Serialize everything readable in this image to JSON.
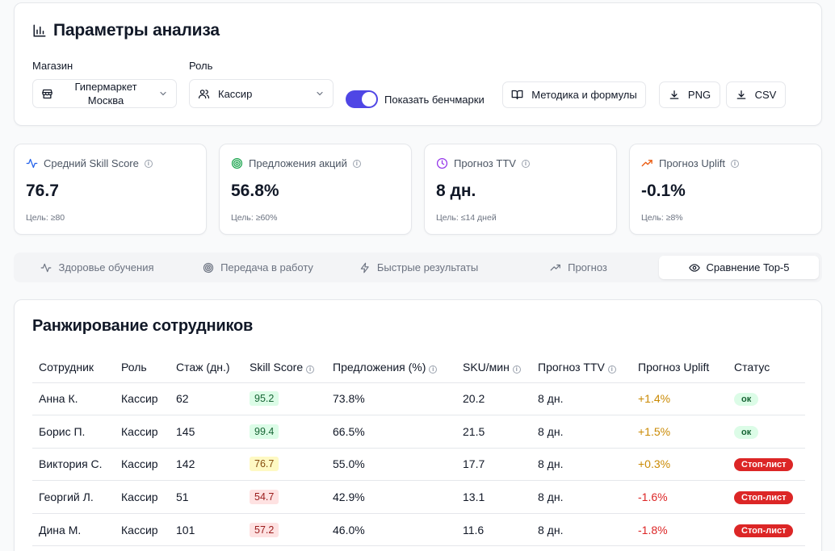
{
  "params": {
    "title": "Параметры анализа",
    "store_label": "Магазин",
    "store_value": "Гипермаркет Москва",
    "role_label": "Роль",
    "role_value": "Кассир",
    "toggle_label": "Показать бенчмарки",
    "toggle_on": true,
    "methodology_button": "Методика и формулы",
    "png_button": "PNG",
    "csv_button": "CSV"
  },
  "kpis": [
    {
      "label": "Средний Skill Score",
      "value": "76.7",
      "target": "Цель: ≥80",
      "icon": "activity-icon",
      "color": "#2563eb"
    },
    {
      "label": "Предложения акций",
      "value": "56.8%",
      "target": "Цель: ≥60%",
      "icon": "target-icon",
      "color": "#16a34a"
    },
    {
      "label": "Прогноз TTV",
      "value": "8 дн.",
      "target": "Цель: ≤14 дней",
      "icon": "clock-icon",
      "color": "#9333ea"
    },
    {
      "label": "Прогноз Uplift",
      "value": "-0.1%",
      "target": "Цель: ≥8%",
      "icon": "trending-up-icon",
      "color": "#ea580c"
    }
  ],
  "tabs": [
    {
      "label": "Здоровье обучения",
      "icon": "activity-icon"
    },
    {
      "label": "Передача в работу",
      "icon": "target-icon"
    },
    {
      "label": "Быстрые результаты",
      "icon": "zap-icon"
    },
    {
      "label": "Прогноз",
      "icon": "trending-up-icon"
    },
    {
      "label": "Сравнение Top-5",
      "icon": "eye-icon",
      "active": true
    }
  ],
  "ranking": {
    "title": "Ранжирование сотрудников",
    "columns": [
      "Сотрудник",
      "Роль",
      "Стаж (дн.)",
      "Skill Score",
      "Предложения (%)",
      "SKU/мин",
      "Прогноз TTV",
      "Прогноз Uplift",
      "Статус"
    ],
    "rows": [
      {
        "name": "Анна К.",
        "role": "Кассир",
        "tenure": "62",
        "score": "95.2",
        "score_level": "green",
        "offers": "73.8%",
        "sku": "20.2",
        "ttv": "8 дн.",
        "uplift": "+1.4%",
        "status": "ок",
        "status_type": "ok"
      },
      {
        "name": "Борис П.",
        "role": "Кассир",
        "tenure": "145",
        "score": "99.4",
        "score_level": "green",
        "offers": "66.5%",
        "sku": "21.5",
        "ttv": "8 дн.",
        "uplift": "+1.5%",
        "status": "ок",
        "status_type": "ok"
      },
      {
        "name": "Виктория С.",
        "role": "Кассир",
        "tenure": "142",
        "score": "76.7",
        "score_level": "yellow",
        "offers": "55.0%",
        "sku": "17.7",
        "ttv": "8 дн.",
        "uplift": "+0.3%",
        "status": "Стоп-лист",
        "status_type": "stop"
      },
      {
        "name": "Георгий Л.",
        "role": "Кассир",
        "tenure": "51",
        "score": "54.7",
        "score_level": "red",
        "offers": "42.9%",
        "sku": "13.1",
        "ttv": "8 дн.",
        "uplift": "-1.6%",
        "status": "Стоп-лист",
        "status_type": "stop"
      },
      {
        "name": "Дина М.",
        "role": "Кассир",
        "tenure": "101",
        "score": "57.2",
        "score_level": "red",
        "offers": "46.0%",
        "sku": "11.6",
        "ttv": "8 дн.",
        "uplift": "-1.8%",
        "status": "Стоп-лист",
        "status_type": "stop"
      }
    ]
  }
}
